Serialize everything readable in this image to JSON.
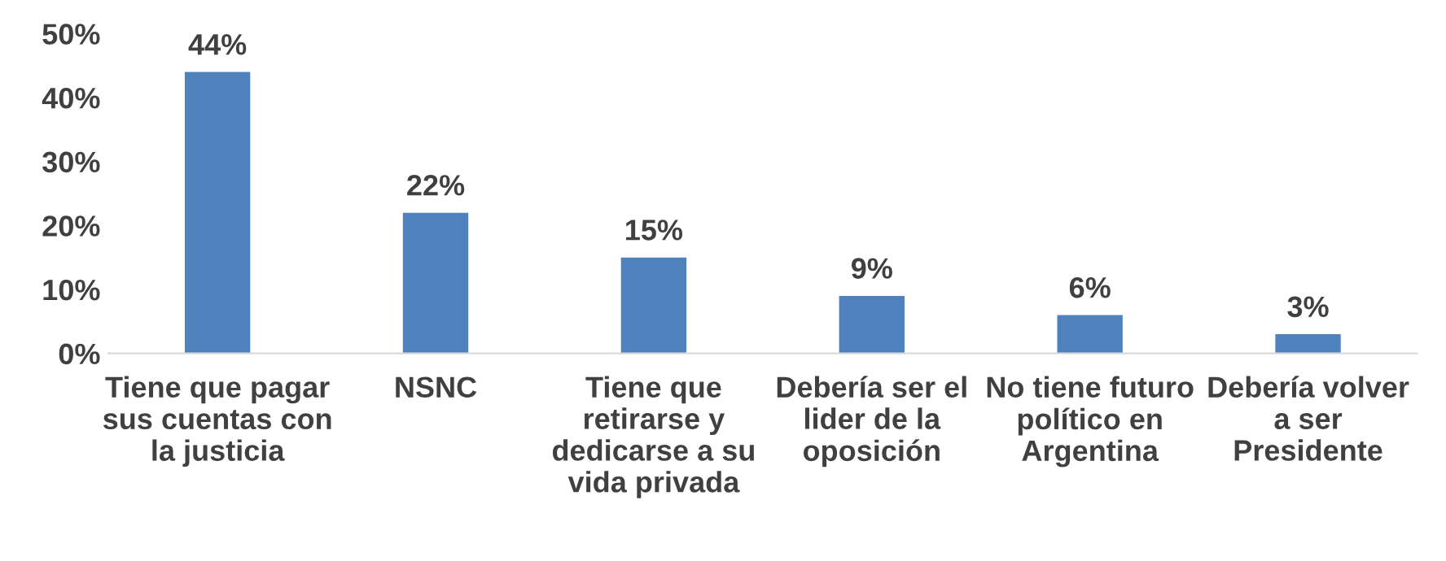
{
  "chart_data": {
    "type": "bar",
    "categories": [
      "Tiene que pagar sus cuentas con la justicia",
      "NSNC",
      "Tiene que retirarse y dedicarse a su vida privada",
      "Debería ser el lider de la oposición",
      "No tiene futuro político en Argentina",
      "Debería volver a ser Presidente"
    ],
    "values": [
      44,
      22,
      15,
      9,
      6,
      3
    ],
    "value_labels": [
      "44%",
      "22%",
      "15%",
      "9%",
      "6%",
      "3%"
    ],
    "color": "#4f81bd",
    "ylim": [
      0,
      50
    ],
    "yticks": [
      {
        "value": 0,
        "label": "0%"
      },
      {
        "value": 10,
        "label": "10%"
      },
      {
        "value": 20,
        "label": "20%"
      },
      {
        "value": 30,
        "label": "30%"
      },
      {
        "value": 40,
        "label": "40%"
      },
      {
        "value": 50,
        "label": "50%"
      }
    ],
    "grid": false
  }
}
